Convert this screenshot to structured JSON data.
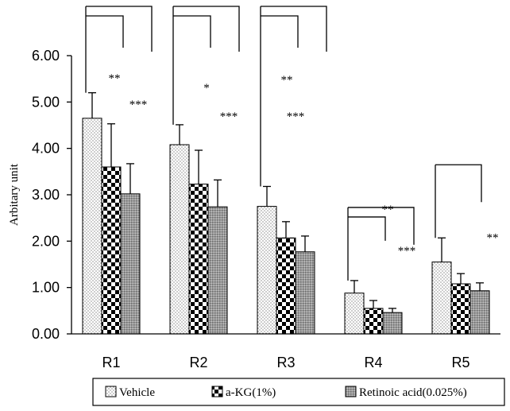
{
  "chart_data": {
    "type": "bar",
    "ylabel": "Arbitary unit",
    "ylim": [
      0,
      6
    ],
    "yticks": [
      "0.00",
      "1.00",
      "2.00",
      "3.00",
      "4.00",
      "5.00",
      "6.00"
    ],
    "categories": [
      "R1",
      "R2",
      "R3",
      "R4",
      "R5"
    ],
    "series": [
      {
        "name": "Vehicle",
        "values": [
          4.65,
          4.08,
          2.75,
          0.88,
          1.55
        ],
        "errors": [
          0.55,
          0.43,
          0.43,
          0.27,
          0.52
        ]
      },
      {
        "name": "a-KG(1%)",
        "values": [
          3.6,
          3.23,
          2.07,
          0.55,
          1.08
        ],
        "errors": [
          0.93,
          0.73,
          0.35,
          0.17,
          0.22
        ]
      },
      {
        "name": "Retinoic acid(0.025%)",
        "values": [
          3.02,
          2.74,
          1.77,
          0.46,
          0.93
        ],
        "errors": [
          0.65,
          0.58,
          0.34,
          0.09,
          0.17
        ]
      }
    ],
    "significance": [
      {
        "category": "R1",
        "labels": [
          "**",
          "***"
        ]
      },
      {
        "category": "R2",
        "labels": [
          "*",
          "***"
        ]
      },
      {
        "category": "R3",
        "labels": [
          "**",
          "***"
        ]
      },
      {
        "category": "R4",
        "labels": [
          "**",
          "***"
        ]
      },
      {
        "category": "R5",
        "labels": [
          "**"
        ]
      }
    ],
    "legend_position": "bottom",
    "grid": false
  }
}
